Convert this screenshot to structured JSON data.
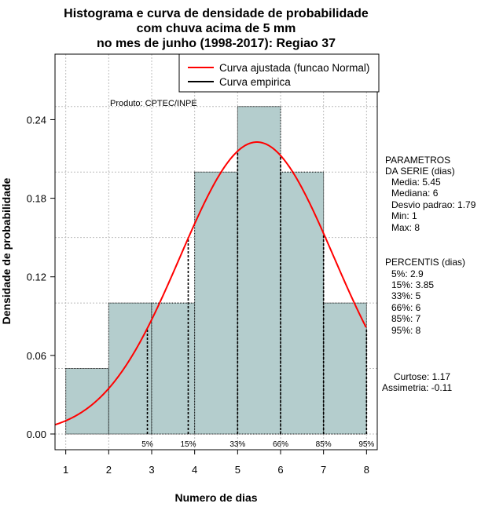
{
  "chart_data": {
    "type": "bar",
    "title_lines": [
      "Histograma e curva de densidade de probabilidade",
      "com chuva acima de 5 mm",
      "no mes de junho (1998-2017): Regiao 37"
    ],
    "xlabel": "Numero de dias",
    "ylabel": "Densidade de probabilidade",
    "xlim": [
      0.75,
      8.25
    ],
    "ylim": [
      -0.012,
      0.29
    ],
    "x_ticks": [
      "1",
      "2",
      "3",
      "4",
      "5",
      "6",
      "7",
      "8"
    ],
    "y_ticks": [
      "0.00",
      "0.06",
      "0.12",
      "0.18",
      "0.24"
    ],
    "bins": [
      {
        "x0": 1,
        "x1": 2,
        "value": 0.05
      },
      {
        "x0": 2,
        "x1": 3,
        "value": 0.1
      },
      {
        "x0": 3,
        "x1": 4,
        "value": 0.1
      },
      {
        "x0": 4,
        "x1": 5,
        "value": 0.2
      },
      {
        "x0": 5,
        "x1": 6,
        "value": 0.25
      },
      {
        "x0": 6,
        "x1": 7,
        "value": 0.2
      },
      {
        "x0": 7,
        "x1": 8,
        "value": 0.1
      }
    ],
    "bar_color": "#b4cdcd",
    "curve_color": "#ff0000",
    "empirical_color": "#000000",
    "curve": {
      "mean": 5.45,
      "sd": 1.79,
      "x_from": 0.75,
      "x_to": 8.0
    },
    "legend": {
      "placement": "top-right",
      "entries": [
        {
          "label": "Curva ajustada (funcao Normal)",
          "color": "#ff0000"
        },
        {
          "label": "Curva empirica",
          "color": "#000000"
        }
      ]
    },
    "percentile_markers": [
      {
        "label": "5%",
        "x": 2.9
      },
      {
        "label": "15%",
        "x": 3.85
      },
      {
        "label": "33%",
        "x": 5
      },
      {
        "label": "66%",
        "x": 6
      },
      {
        "label": "85%",
        "x": 7
      },
      {
        "label": "95%",
        "x": 8
      }
    ],
    "source_label": "Produto: CPTEC/INPE",
    "grid": true
  },
  "parametros": {
    "heading": [
      "PARAMETROS",
      "DA SERIE (dias)"
    ],
    "items": [
      "Media: 5.45",
      "Mediana: 6",
      "Desvio padrao: 1.79",
      "Min: 1",
      "Max: 8"
    ]
  },
  "percentis": {
    "heading": "PERCENTIS (dias)",
    "items": [
      "5%: 2.9",
      "15%: 3.85",
      "33%: 5",
      "66%: 6",
      "85%: 7",
      "95%: 8"
    ]
  },
  "forma": {
    "items": [
      "Curtose: 1.17",
      "Assimetria: -0.11"
    ]
  }
}
